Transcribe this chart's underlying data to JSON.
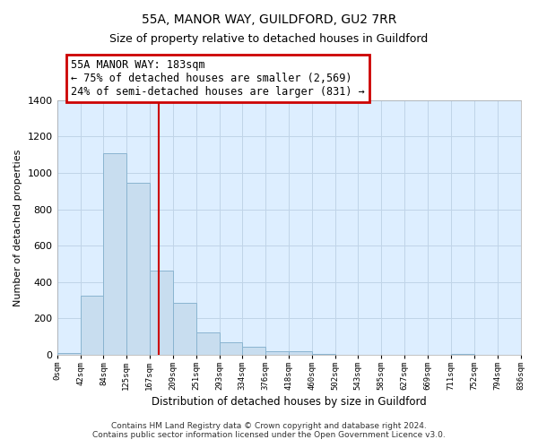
{
  "title1": "55A, MANOR WAY, GUILDFORD, GU2 7RR",
  "title2": "Size of property relative to detached houses in Guildford",
  "xlabel": "Distribution of detached houses by size in Guildford",
  "ylabel": "Number of detached properties",
  "footnote1": "Contains HM Land Registry data © Crown copyright and database right 2024.",
  "footnote2": "Contains public sector information licensed under the Open Government Licence v3.0.",
  "bin_labels": [
    "0sqm",
    "42sqm",
    "84sqm",
    "125sqm",
    "167sqm",
    "209sqm",
    "251sqm",
    "293sqm",
    "334sqm",
    "376sqm",
    "418sqm",
    "460sqm",
    "502sqm",
    "543sqm",
    "585sqm",
    "627sqm",
    "669sqm",
    "711sqm",
    "752sqm",
    "794sqm",
    "836sqm"
  ],
  "bar_heights": [
    10,
    325,
    1110,
    945,
    462,
    287,
    125,
    70,
    45,
    20,
    20,
    5,
    0,
    0,
    0,
    0,
    0,
    5,
    0,
    0,
    0
  ],
  "bar_color": "#c8ddef",
  "bar_edge_color": "#8ab4d0",
  "vertical_line_x": 183,
  "annotation_title": "55A MANOR WAY: 183sqm",
  "annotation_line1": "← 75% of detached houses are smaller (2,569)",
  "annotation_line2": "24% of semi-detached houses are larger (831) →",
  "annotation_box_color": "#ffffff",
  "annotation_box_edge_color": "#cc0000",
  "line_color": "#cc0000",
  "ylim": [
    0,
    1400
  ],
  "yticks": [
    0,
    200,
    400,
    600,
    800,
    1000,
    1200,
    1400
  ],
  "bin_edges_sqm": [
    0,
    42,
    84,
    125,
    167,
    209,
    251,
    293,
    334,
    376,
    418,
    460,
    502,
    543,
    585,
    627,
    669,
    711,
    752,
    794,
    836
  ],
  "bg_color": "#ddeeff",
  "grid_color": "#c0d4e8"
}
